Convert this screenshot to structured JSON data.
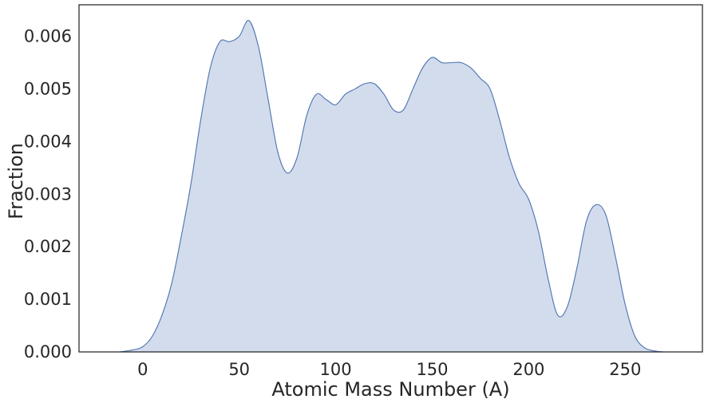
{
  "chart_data": {
    "type": "area",
    "title": "",
    "xlabel": "Atomic Mass Number (A)",
    "ylabel": "Fraction",
    "xlim": [
      -33,
      290
    ],
    "ylim": [
      0,
      0.0066
    ],
    "xticks": [
      0,
      50,
      100,
      150,
      200,
      250
    ],
    "yticks": [
      0.0,
      0.001,
      0.002,
      0.003,
      0.004,
      0.005,
      0.006
    ],
    "ytick_labels": [
      "0.000",
      "0.001",
      "0.002",
      "0.003",
      "0.004",
      "0.005",
      "0.006"
    ],
    "grid": false,
    "legend": "none",
    "fill_color": "#d2dcec",
    "line_color": "#4c72b0",
    "series": [
      {
        "x": [
          -12,
          -5,
          0,
          5,
          10,
          15,
          20,
          25,
          30,
          35,
          40,
          45,
          50,
          55,
          60,
          65,
          70,
          75,
          80,
          85,
          90,
          95,
          100,
          105,
          110,
          115,
          120,
          125,
          130,
          135,
          140,
          145,
          150,
          155,
          160,
          165,
          170,
          175,
          180,
          185,
          190,
          195,
          200,
          205,
          210,
          215,
          220,
          225,
          230,
          235,
          240,
          245,
          250,
          255,
          260,
          265,
          270
        ],
        "y": [
          0.0,
          4e-05,
          0.0001,
          0.0003,
          0.0007,
          0.0013,
          0.0022,
          0.0032,
          0.0044,
          0.0054,
          0.0059,
          0.0059,
          0.006,
          0.0063,
          0.0058,
          0.0048,
          0.0038,
          0.0034,
          0.0037,
          0.0045,
          0.0049,
          0.0048,
          0.0047,
          0.0049,
          0.005,
          0.0051,
          0.0051,
          0.0049,
          0.0046,
          0.0046,
          0.005,
          0.0054,
          0.0056,
          0.0055,
          0.0055,
          0.0055,
          0.0054,
          0.0052,
          0.005,
          0.0044,
          0.0037,
          0.0032,
          0.0029,
          0.0023,
          0.0014,
          0.0007,
          0.00086,
          0.0016,
          0.0025,
          0.0028,
          0.0026,
          0.0018,
          0.0009,
          0.0003,
          8e-05,
          2e-05,
          0.0
        ]
      }
    ]
  }
}
